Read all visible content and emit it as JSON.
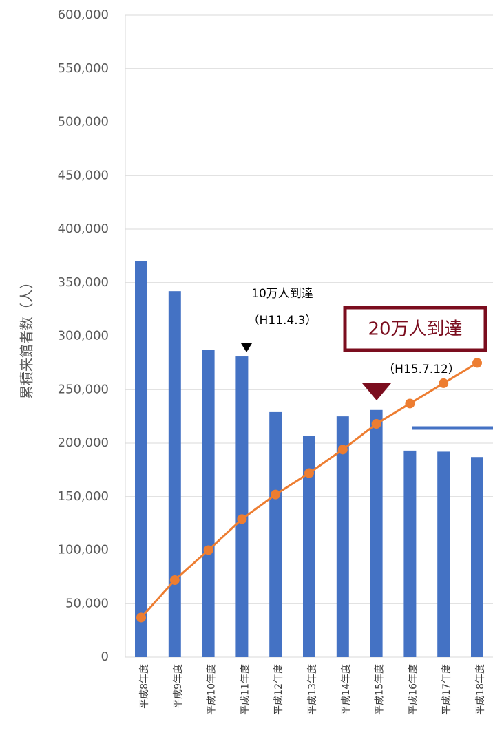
{
  "chart_data": {
    "type": "bar+line",
    "ylabel": "累積来館者数（人）",
    "categories": [
      "平成8年度",
      "平成9年度",
      "平成10年度",
      "平成11年度",
      "平成12年度",
      "平成13年度",
      "平成14年度",
      "平成15年度",
      "平成16年度",
      "平成17年度",
      "平成18年度"
    ],
    "series": [
      {
        "type": "bar",
        "color": "#4472c4",
        "values": [
          370000,
          342000,
          287000,
          281000,
          229000,
          207000,
          225000,
          231000,
          193000,
          192000,
          187000
        ]
      },
      {
        "type": "line",
        "color": "#ed7d31",
        "values": [
          37000,
          72000,
          100000,
          129000,
          152000,
          172000,
          194000,
          218000,
          237000,
          256000,
          275000
        ]
      }
    ],
    "ylim": [
      0,
      600000
    ],
    "yticks": [
      0,
      {
        "value": 50000,
        "label": "50,000"
      },
      {
        "value": 100000,
        "label": "100,000"
      },
      {
        "value": 150000,
        "label": "150,000"
      },
      {
        "value": 200000,
        "label": "200,000"
      },
      {
        "value": 250000,
        "label": "250,000"
      },
      {
        "value": 300000,
        "label": "300,000"
      },
      {
        "value": 350000,
        "label": "350,000"
      },
      {
        "value": 400000,
        "label": "400,000"
      },
      {
        "value": 450000,
        "label": "450,000"
      },
      {
        "value": 500000,
        "label": "500,000"
      },
      {
        "value": 550000,
        "label": "550,000"
      },
      {
        "value": 600000,
        "label": "600,000"
      }
    ],
    "grid": true,
    "annotations": [
      "10万人到達",
      "（H11.4.3）",
      "20万人到達",
      "（H15.7.12）"
    ]
  }
}
